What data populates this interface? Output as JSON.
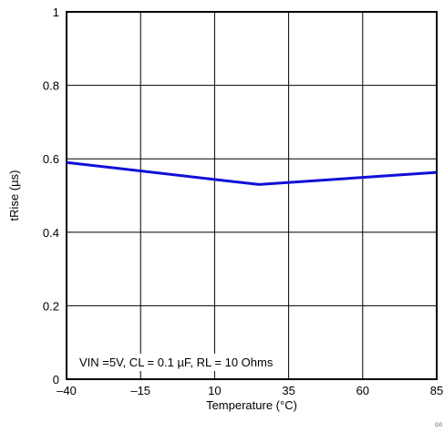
{
  "chart_data": {
    "type": "line",
    "title": "",
    "xlabel": "Temperature (°C)",
    "ylabel": "tRise (µs)",
    "xlim": [
      -40,
      85
    ],
    "ylim": [
      0,
      1
    ],
    "x_ticks": [
      -40,
      -15,
      10,
      35,
      60,
      85
    ],
    "x_tick_labels": [
      "–40",
      "–15",
      "10",
      "35",
      "60",
      "85"
    ],
    "y_ticks": [
      0,
      0.2,
      0.4,
      0.6,
      0.8,
      1
    ],
    "y_tick_labels": [
      "0",
      "0.2",
      "0.4",
      "0.6",
      "0.8",
      "1"
    ],
    "grid": true,
    "series": [
      {
        "x": [
          -40,
          25,
          85
        ],
        "y": [
          0.59,
          0.53,
          0.563
        ],
        "color": "#1010d8"
      }
    ],
    "annotation": "VIN =5V, CL = 0.1 µF, RL = 10 Ohms",
    "corner_code": "G0"
  }
}
